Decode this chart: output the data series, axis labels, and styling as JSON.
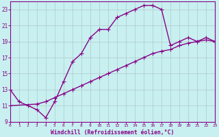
{
  "title": "",
  "xlabel": "Windchill (Refroidissement éolien,°C)",
  "bg_color": "#c8f0f0",
  "grid_color": "#b0c8c8",
  "line_color": "#880088",
  "line1_x": [
    0,
    1,
    2,
    3,
    4,
    5,
    6,
    7,
    8,
    9,
    10,
    11,
    12,
    13,
    14,
    15,
    16,
    17,
    18,
    19,
    20,
    21,
    22,
    23
  ],
  "line1_y": [
    13.0,
    11.5,
    11.0,
    10.5,
    9.5,
    11.5,
    14.0,
    16.5,
    17.5,
    19.5,
    20.5,
    20.5,
    22.0,
    22.5,
    23.0,
    23.5,
    23.5,
    23.0,
    18.5,
    19.0,
    19.5,
    19.0,
    19.5,
    19.0
  ],
  "line2_x": [
    0,
    3,
    4,
    5,
    6,
    7,
    8,
    9,
    10,
    11,
    12,
    13,
    14,
    15,
    16,
    17,
    18,
    19,
    20,
    21,
    22,
    23
  ],
  "line2_y": [
    11.0,
    11.2,
    11.5,
    12.0,
    12.5,
    13.0,
    13.5,
    14.0,
    14.5,
    15.0,
    15.5,
    16.0,
    16.5,
    17.0,
    17.5,
    17.8,
    18.0,
    18.5,
    18.8,
    19.0,
    19.2,
    19.0
  ],
  "xlim": [
    0,
    23
  ],
  "ylim": [
    9,
    24
  ],
  "yticks": [
    9,
    11,
    13,
    15,
    17,
    19,
    21,
    23
  ],
  "xticks": [
    0,
    1,
    2,
    3,
    4,
    5,
    6,
    7,
    8,
    9,
    10,
    11,
    12,
    13,
    14,
    15,
    16,
    17,
    18,
    19,
    20,
    21,
    22,
    23
  ],
  "marker": "+",
  "markersize": 4,
  "linewidth": 1.0
}
